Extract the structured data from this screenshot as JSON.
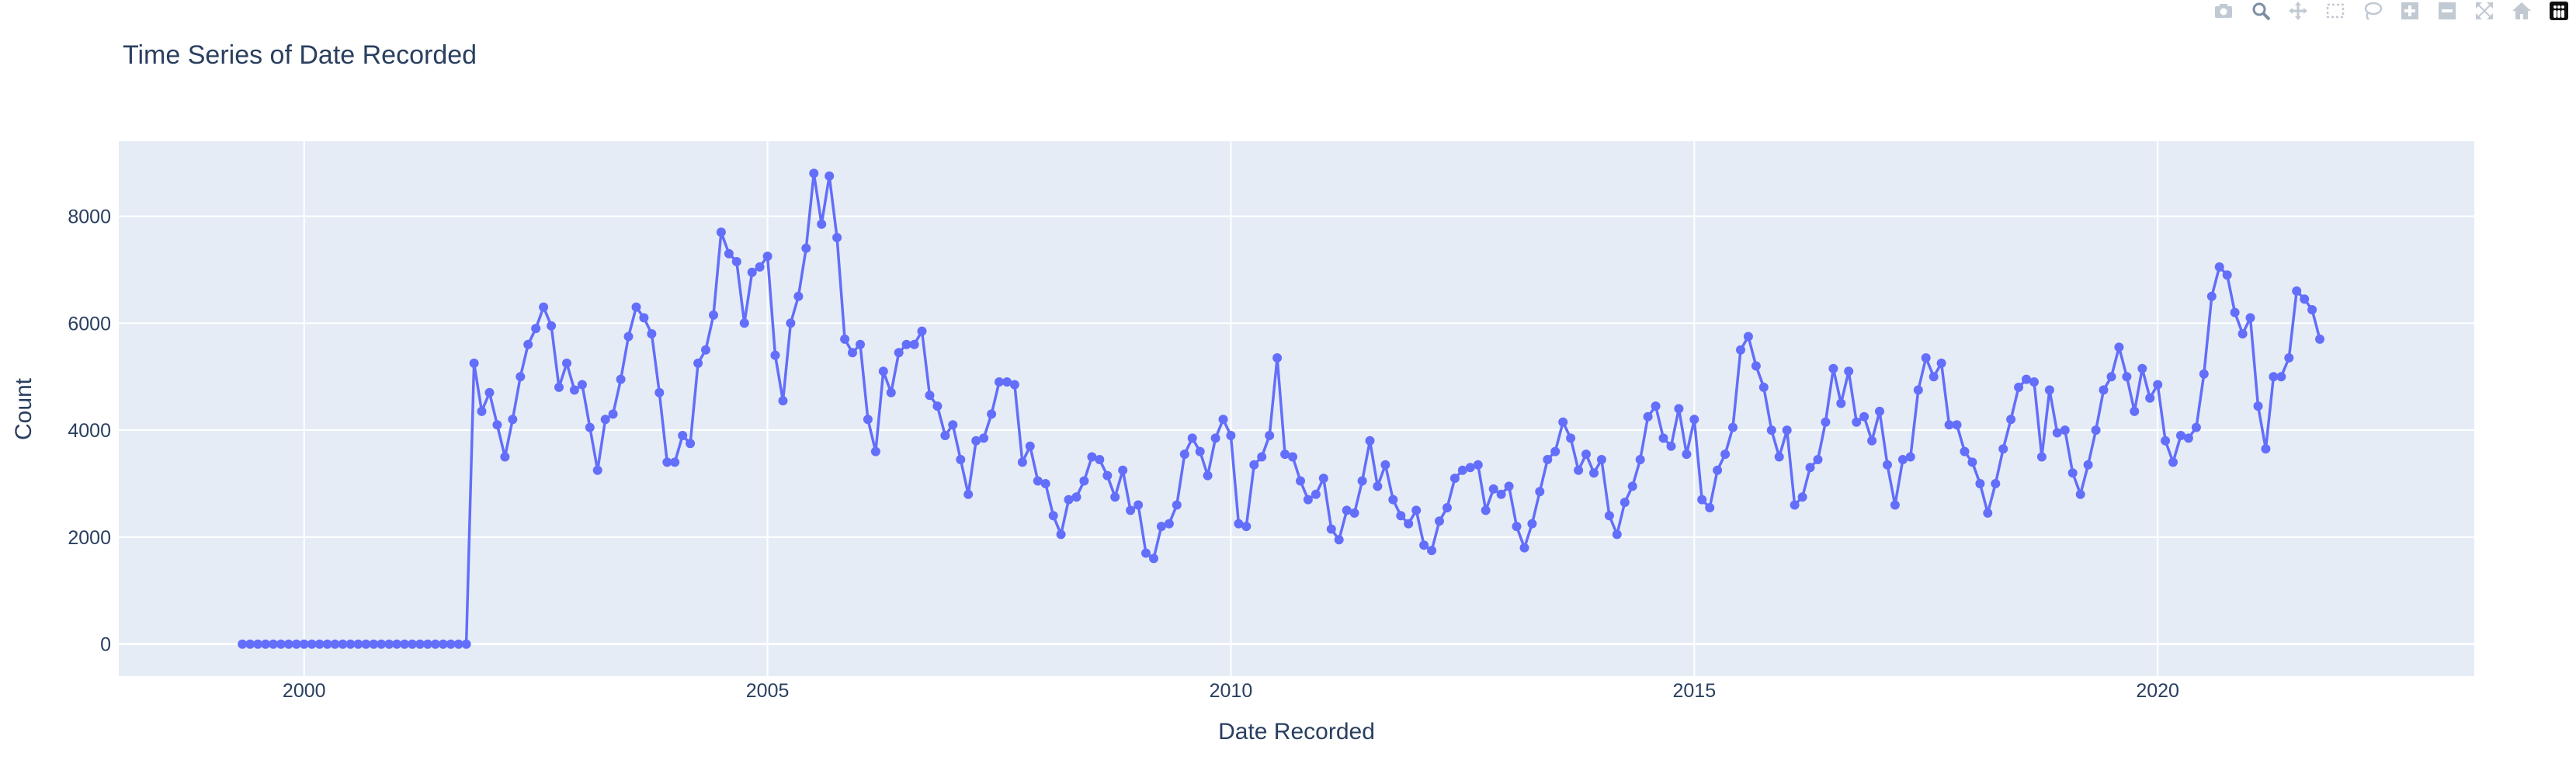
{
  "colors": {
    "plot_bg": "#e5ecf6",
    "grid": "#ffffff",
    "line": "#636efa",
    "text": "#2a3f5f"
  },
  "modebar": [
    "camera-icon",
    "zoom-icon",
    "pan-icon",
    "box-select-icon",
    "lasso-select-icon",
    "zoom-in-icon",
    "zoom-out-icon",
    "autoscale-icon",
    "reset-axes-icon",
    "plotly-logo"
  ],
  "chart_data": {
    "type": "line",
    "title": "Time Series of Date Recorded",
    "xlabel": "Date Recorded",
    "ylabel": "Count",
    "xlim": [
      "1998-01-01",
      "2023-06-01"
    ],
    "ylim": [
      -600,
      9400
    ],
    "xticks": [
      "2000",
      "2005",
      "2010",
      "2015",
      "2020"
    ],
    "yticks": [
      0,
      2000,
      4000,
      6000,
      8000
    ],
    "grid": true,
    "legend": "none",
    "mode": "lines+markers",
    "series": [
      {
        "x_start": "1999-05",
        "frequency": "monthly",
        "values": [
          0,
          0,
          0,
          0,
          0,
          0,
          0,
          0,
          0,
          0,
          0,
          0,
          0,
          0,
          0,
          0,
          0,
          0,
          0,
          0,
          0,
          0,
          0,
          0,
          0,
          0,
          0,
          0,
          0,
          0,
          5250,
          4350,
          4700,
          4100,
          3500,
          4200,
          5000,
          5600,
          5900,
          6300,
          5950,
          4800,
          5250,
          4750,
          4850,
          4050,
          3250,
          4200,
          4300,
          4950,
          5750,
          6300,
          6100,
          5800,
          4700,
          3400,
          3400,
          3900,
          3750,
          5250,
          5500,
          6150,
          7700,
          7300,
          7150,
          6000,
          6950,
          7050,
          7250,
          5400,
          4550,
          6000,
          6500,
          7400,
          8800,
          7850,
          8750,
          7600,
          5700,
          5450,
          5600,
          4200,
          3600,
          5100,
          4700,
          5450,
          5600,
          5600,
          5850,
          4650,
          4450,
          3900,
          4100,
          3450,
          2800,
          3800,
          3850,
          4300,
          4900,
          4900,
          4850,
          3400,
          3700,
          3050,
          3000,
          2400,
          2050,
          2700,
          2750,
          3050,
          3500,
          3450,
          3150,
          2750,
          3250,
          2500,
          2600,
          1700,
          1600,
          2200,
          2250,
          2600,
          3550,
          3850,
          3600,
          3150,
          3850,
          4200,
          3900,
          2250,
          2200,
          3350,
          3500,
          3900,
          5350,
          3550,
          3500,
          3050,
          2700,
          2800,
          3100,
          2150,
          1950,
          2500,
          2450,
          3050,
          3800,
          2950,
          3350,
          2700,
          2400,
          2250,
          2500,
          1850,
          1750,
          2300,
          2550,
          3100,
          3250,
          3300,
          3350,
          2500,
          2900,
          2800,
          2950,
          2200,
          1800,
          2250,
          2850,
          3450,
          3600,
          4150,
          3850,
          3250,
          3550,
          3200,
          3450,
          2400,
          2050,
          2650,
          2950,
          3450,
          4250,
          4450,
          3850,
          3700,
          4400,
          3550,
          4200,
          2700,
          2550,
          3250,
          3550,
          4050,
          5500,
          5750,
          5200,
          4800,
          4000,
          3500,
          4000,
          2600,
          2750,
          3300,
          3450,
          4150,
          5150,
          4500,
          5100,
          4150,
          4250,
          3800,
          4350,
          3350,
          2600,
          3450,
          3500,
          4750,
          5350,
          5000,
          5250,
          4100,
          4100,
          3600,
          3400,
          3000,
          2450,
          3000,
          3650,
          4200,
          4800,
          4950,
          4900,
          3500,
          4750,
          3950,
          4000,
          3200,
          2800,
          3350,
          4000,
          4750,
          5000,
          5550,
          5000,
          4350,
          5150,
          4600,
          4850,
          3800,
          3400,
          3900,
          3850,
          4050,
          5050,
          6500,
          7050,
          6900,
          6200,
          5800,
          6100,
          4450,
          3650,
          5000,
          5000,
          5350,
          6600,
          6450,
          6250,
          5700
        ]
      }
    ]
  }
}
